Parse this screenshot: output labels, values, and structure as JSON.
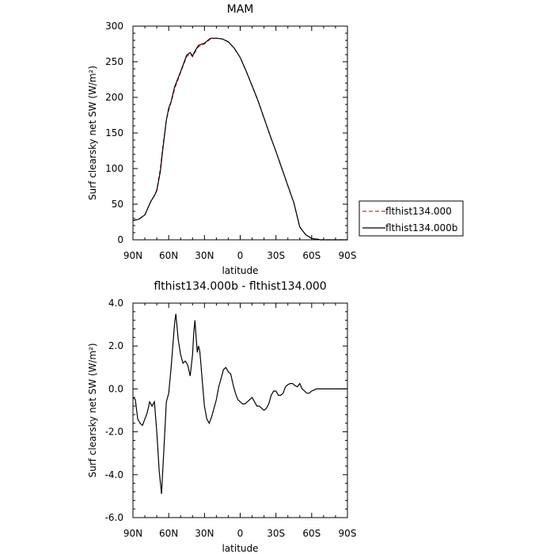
{
  "chart_data": [
    {
      "type": "line",
      "title": "MAM",
      "xlabel": "latitude",
      "ylabel": "Surf clearsky net SW (W/m²)",
      "xlim": [
        90,
        -90
      ],
      "ylim": [
        0,
        300
      ],
      "xticks": [
        90,
        60,
        30,
        0,
        -30,
        -60,
        -90
      ],
      "xtick_labels": [
        "90N",
        "60N",
        "30N",
        "0",
        "30S",
        "60S",
        "90S"
      ],
      "yticks": [
        0,
        50,
        100,
        150,
        200,
        250,
        300
      ],
      "ytick_labels": [
        "0",
        "50",
        "100",
        "150",
        "200",
        "250",
        "300"
      ],
      "grid": false,
      "legend_position": "right",
      "series": [
        {
          "name": "flthist134.000",
          "color": "#d62728",
          "dash": "dashed",
          "x": [
            90,
            85,
            80,
            75,
            72,
            70,
            67,
            65,
            62,
            60,
            58,
            55,
            50,
            45,
            42,
            40,
            38,
            35,
            30,
            25,
            20,
            15,
            10,
            5,
            0,
            -5,
            -10,
            -15,
            -20,
            -25,
            -30,
            -35,
            -40,
            -45,
            -50,
            -55,
            -60,
            -63,
            -65,
            -67,
            -70,
            -75,
            -80,
            -85,
            -90
          ],
          "y": [
            27,
            29,
            35,
            54,
            62,
            70,
            100,
            130,
            168,
            182,
            193,
            212,
            235,
            257,
            261,
            257,
            263,
            271,
            275,
            282,
            283,
            282,
            278,
            269,
            256,
            237,
            216,
            195,
            171,
            147,
            124,
            100,
            76,
            52,
            18,
            7,
            2,
            1,
            1,
            0,
            0,
            0,
            0,
            0,
            0
          ]
        },
        {
          "name": "flthist134.000b",
          "color": "#000000",
          "dash": "solid",
          "x": [
            90,
            85,
            80,
            75,
            72,
            70,
            67,
            65,
            62,
            60,
            58,
            55,
            50,
            45,
            42,
            40,
            38,
            35,
            30,
            25,
            20,
            15,
            10,
            5,
            0,
            -5,
            -10,
            -15,
            -20,
            -25,
            -30,
            -35,
            -40,
            -45,
            -50,
            -55,
            -60,
            -63,
            -65,
            -67,
            -70,
            -75,
            -80,
            -85,
            -90
          ],
          "y": [
            27,
            29,
            35,
            54,
            62,
            69,
            96,
            126,
            168,
            185,
            194,
            215,
            236,
            259,
            263,
            258,
            265,
            273,
            276,
            283,
            283,
            282,
            278,
            269,
            256,
            237,
            216,
            195,
            171,
            147,
            124,
            100,
            76,
            52,
            18,
            7,
            2,
            1,
            1,
            0,
            0,
            0,
            0,
            0,
            0
          ]
        }
      ]
    },
    {
      "type": "line",
      "title": "flthist134.000b - flthist134.000",
      "xlabel": "latitude",
      "ylabel": "Surf clearsky net SW (W/m²)",
      "xlim": [
        90,
        -90
      ],
      "ylim": [
        -6,
        4
      ],
      "xticks": [
        90,
        60,
        30,
        0,
        -30,
        -60,
        -90
      ],
      "xtick_labels": [
        "90N",
        "60N",
        "30N",
        "0",
        "30S",
        "60S",
        "90S"
      ],
      "yticks": [
        -6,
        -4,
        -2,
        0,
        2,
        4
      ],
      "ytick_labels": [
        "-6.0",
        "-4.0",
        "-2.0",
        "0.0",
        "2.0",
        "4.0"
      ],
      "grid": false,
      "series": [
        {
          "color": "#000000",
          "dash": "solid",
          "x": [
            90,
            88,
            86,
            84,
            82,
            80,
            78,
            76,
            74,
            72,
            70,
            68,
            66,
            64,
            62,
            60,
            58,
            56,
            55,
            54,
            52,
            50,
            48,
            46,
            44,
            42,
            40,
            39,
            38,
            37,
            36,
            35,
            34,
            33,
            32,
            30,
            28,
            26,
            24,
            22,
            20,
            18,
            16,
            14,
            12,
            10,
            8,
            6,
            4,
            2,
            0,
            -2,
            -4,
            -6,
            -8,
            -10,
            -12,
            -14,
            -16,
            -18,
            -20,
            -22,
            -24,
            -26,
            -28,
            -30,
            -32,
            -34,
            -36,
            -38,
            -40,
            -42,
            -44,
            -46,
            -48,
            -50,
            -52,
            -54,
            -56,
            -58,
            -60,
            -62,
            -64,
            -66,
            -68,
            -70,
            -72,
            -74,
            -76,
            -78,
            -80,
            -82,
            -84,
            -86,
            -88,
            -90
          ],
          "y": [
            -0.4,
            -0.5,
            -1.4,
            -1.6,
            -1.7,
            -1.4,
            -1.1,
            -0.6,
            -0.8,
            -0.6,
            -2.0,
            -3.8,
            -4.9,
            -2.8,
            -0.6,
            -0.2,
            1.0,
            2.4,
            3.1,
            3.5,
            2.3,
            1.6,
            1.2,
            1.3,
            1.1,
            0.6,
            1.6,
            2.6,
            3.2,
            2.4,
            1.7,
            2.0,
            1.8,
            1.2,
            0.5,
            -0.8,
            -1.4,
            -1.6,
            -1.3,
            -0.9,
            -0.5,
            0.1,
            0.5,
            0.9,
            1.0,
            0.8,
            0.7,
            0.2,
            -0.2,
            -0.5,
            -0.6,
            -0.7,
            -0.7,
            -0.6,
            -0.5,
            -0.4,
            -0.6,
            -0.8,
            -0.8,
            -0.9,
            -1.0,
            -0.9,
            -0.7,
            -0.3,
            -0.1,
            -0.1,
            -0.3,
            -0.3,
            -0.2,
            0.1,
            0.2,
            0.25,
            0.25,
            0.15,
            0.1,
            0.25,
            0.0,
            -0.1,
            -0.2,
            -0.2,
            -0.1,
            -0.05,
            0.0,
            0.0,
            0.0,
            0.0,
            0.0,
            0.0,
            0.0,
            0.0,
            0.0,
            0.0,
            0.0,
            0.0,
            0.0,
            0.0
          ]
        }
      ]
    }
  ]
}
